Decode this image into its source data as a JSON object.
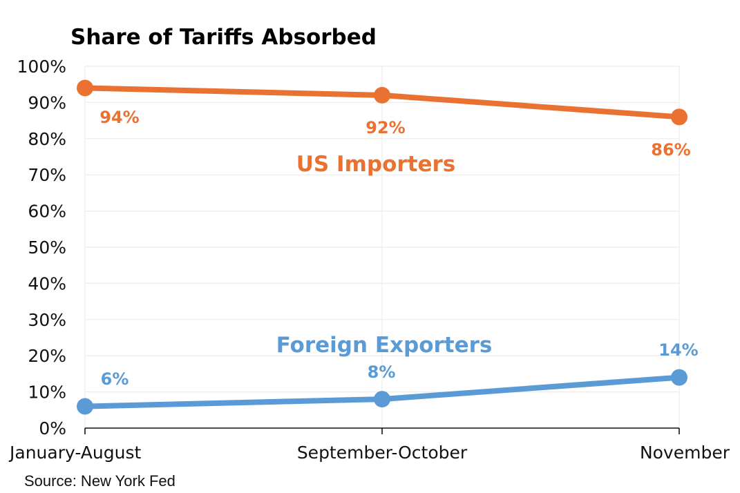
{
  "chart_data": {
    "type": "line",
    "title": "Share of Tariffs Absorbed",
    "xlabel": "",
    "ylabel": "",
    "categories": [
      "January-August",
      "September-October",
      "November"
    ],
    "ylim": [
      0,
      100
    ],
    "yticks": [
      "0%",
      "10%",
      "20%",
      "30%",
      "40%",
      "50%",
      "60%",
      "70%",
      "80%",
      "90%",
      "100%"
    ],
    "grid": true,
    "series": [
      {
        "name": "US Importers",
        "color": "#e97132",
        "values": [
          94,
          92,
          86
        ],
        "labels": [
          "94%",
          "92%",
          "86%"
        ]
      },
      {
        "name": "Foreign Exporters",
        "color": "#5b9bd5",
        "values": [
          6,
          8,
          14
        ],
        "labels": [
          "6%",
          "8%",
          "14%"
        ]
      }
    ],
    "source": "Source: New York Fed"
  }
}
